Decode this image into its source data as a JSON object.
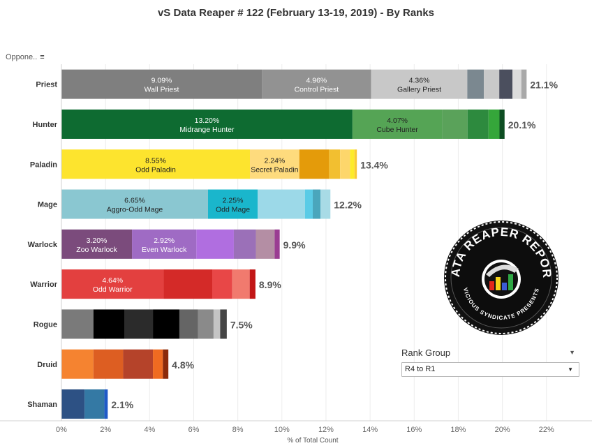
{
  "header": {
    "title": "vS Data Reaper #  122 (February 13-19, 2019) - By Ranks",
    "opponent_label": "Oppone..",
    "sort_icon": "sort-descending-icon"
  },
  "rank_filter": {
    "label": "Rank Group",
    "selected": "R4 to R1",
    "menu_icon": "dropdown-caret-icon"
  },
  "logo": {
    "text_top": "DATA REAPER REPORT",
    "text_bottom": "VICIOUS SYNDICATE PRESENTS"
  },
  "chart_data": {
    "type": "bar",
    "orientation": "horizontal",
    "stacked": true,
    "xlabel": "% of Total Count",
    "xlim": [
      0,
      22
    ],
    "x_ticks": [
      "0%",
      "2%",
      "4%",
      "6%",
      "8%",
      "10%",
      "12%",
      "14%",
      "16%",
      "18%",
      "20%",
      "22%"
    ],
    "grid": true,
    "categories": [
      "Priest",
      "Hunter",
      "Paladin",
      "Mage",
      "Warlock",
      "Warrior",
      "Rogue",
      "Druid",
      "Shaman"
    ],
    "rows": [
      {
        "class": "Priest",
        "total": "21.1%",
        "segments": [
          {
            "value": 9.09,
            "pct": "9.09%",
            "label": "Wall Priest",
            "color": "#7f7f7f",
            "light_text": true
          },
          {
            "value": 4.96,
            "pct": "4.96%",
            "label": "Control Priest",
            "color": "#929292",
            "light_text": true
          },
          {
            "value": 4.36,
            "pct": "4.36%",
            "label": "Gallery Priest",
            "color": "#c8c8c8",
            "light_text": false
          },
          {
            "value": 0.75,
            "color": "#7b8890"
          },
          {
            "value": 0.7,
            "color": "#c9c9c9"
          },
          {
            "value": 0.6,
            "color": "#4b4f5e"
          },
          {
            "value": 0.4,
            "color": "#dcdcdc"
          },
          {
            "value": 0.24,
            "color": "#a9a9a9"
          }
        ]
      },
      {
        "class": "Hunter",
        "total": "20.1%",
        "segments": [
          {
            "value": 13.2,
            "pct": "13.20%",
            "label": "Midrange Hunter",
            "color": "#0e6b31",
            "light_text": true
          },
          {
            "value": 4.07,
            "pct": "4.07%",
            "label": "Cube Hunter",
            "color": "#55a455",
            "light_text": false
          },
          {
            "value": 1.15,
            "color": "#5aa25a"
          },
          {
            "value": 0.95,
            "color": "#2d8a3e"
          },
          {
            "value": 0.5,
            "color": "#35a63a"
          },
          {
            "value": 0.23,
            "color": "#0d4d22"
          }
        ]
      },
      {
        "class": "Paladin",
        "total": "13.4%",
        "segments": [
          {
            "value": 8.55,
            "pct": "8.55%",
            "label": "Odd Paladin",
            "color": "#fde42e",
            "light_text": false
          },
          {
            "value": 2.24,
            "pct": "2.24%",
            "label": "Secret Paladin",
            "color": "#fedb7d",
            "light_text": false
          },
          {
            "value": 1.35,
            "color": "#e49b0a"
          },
          {
            "value": 0.5,
            "color": "#f2bf30"
          },
          {
            "value": 0.45,
            "color": "#fdd66b"
          },
          {
            "value": 0.2,
            "color": "#fdeb2a"
          },
          {
            "value": 0.11,
            "color": "#f9ca35"
          }
        ]
      },
      {
        "class": "Mage",
        "total": "12.2%",
        "segments": [
          {
            "value": 6.65,
            "pct": "6.65%",
            "label": "Aggro-Odd Mage",
            "color": "#8ac7d1",
            "light_text": false
          },
          {
            "value": 2.25,
            "pct": "2.25%",
            "label": "Odd Mage",
            "color": "#1ab6cc",
            "light_text": false
          },
          {
            "value": 2.15,
            "color": "#9cd9e8"
          },
          {
            "value": 0.35,
            "color": "#5acbe6"
          },
          {
            "value": 0.35,
            "color": "#4aa6bc"
          },
          {
            "value": 0.45,
            "color": "#a8dbe6"
          }
        ]
      },
      {
        "class": "Warlock",
        "total": "9.9%",
        "segments": [
          {
            "value": 3.2,
            "pct": "3.20%",
            "label": "Zoo Warlock",
            "color": "#7b4b7c",
            "light_text": true
          },
          {
            "value": 2.92,
            "pct": "2.92%",
            "label": "Even Warlock",
            "color": "#9f6bc4",
            "light_text": true
          },
          {
            "value": 1.7,
            "color": "#b06ee0"
          },
          {
            "value": 1.0,
            "color": "#9b70b8"
          },
          {
            "value": 0.85,
            "color": "#b48ea4"
          },
          {
            "value": 0.23,
            "color": "#9a3d92"
          }
        ]
      },
      {
        "class": "Warrior",
        "total": "8.9%",
        "segments": [
          {
            "value": 4.64,
            "pct": "4.64%",
            "label": "Odd Warrior",
            "color": "#e3403f",
            "light_text": true
          },
          {
            "value": 2.2,
            "color": "#d42a28"
          },
          {
            "value": 0.9,
            "color": "#e84747"
          },
          {
            "value": 0.8,
            "color": "#f17a6e"
          },
          {
            "value": 0.26,
            "color": "#c21616"
          }
        ]
      },
      {
        "class": "Rogue",
        "total": "7.5%",
        "segments": [
          {
            "value": 1.45,
            "color": "#7a7a7a"
          },
          {
            "value": 1.4,
            "color": "#000000"
          },
          {
            "value": 1.3,
            "color": "#2b2b2b"
          },
          {
            "value": 1.2,
            "color": "#000000"
          },
          {
            "value": 0.85,
            "color": "#656565"
          },
          {
            "value": 0.7,
            "color": "#8a8a8a"
          },
          {
            "value": 0.3,
            "color": "#c4c4c4"
          },
          {
            "value": 0.3,
            "color": "#454545"
          }
        ]
      },
      {
        "class": "Druid",
        "total": "4.8%",
        "segments": [
          {
            "value": 1.45,
            "color": "#f58330"
          },
          {
            "value": 1.35,
            "color": "#dd5e22"
          },
          {
            "value": 1.35,
            "color": "#b5432a"
          },
          {
            "value": 0.45,
            "color": "#ef6b21"
          },
          {
            "value": 0.25,
            "color": "#8c2a0a"
          }
        ]
      },
      {
        "class": "Shaman",
        "total": "2.1%",
        "segments": [
          {
            "value": 1.05,
            "color": "#2d5184"
          },
          {
            "value": 0.9,
            "color": "#3479a4"
          },
          {
            "value": 0.15,
            "color": "#1f5ac8"
          }
        ]
      }
    ]
  }
}
